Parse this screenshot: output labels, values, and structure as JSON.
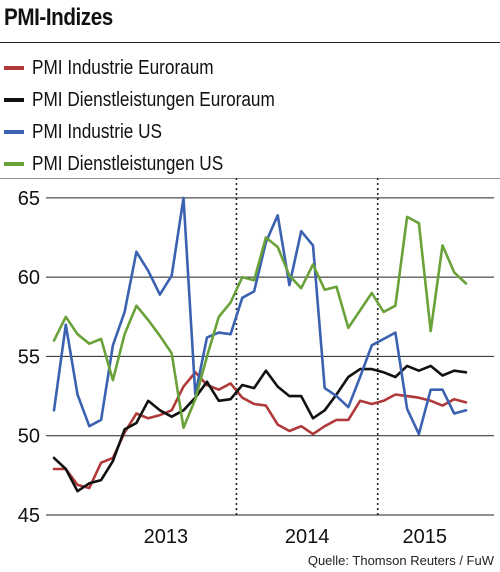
{
  "header": {
    "title": "PMI-Indizes"
  },
  "source": "Quelle: Thomson Reuters / FuW",
  "colors": {
    "red": "#b03a3a",
    "black": "#111111",
    "blue": "#3a62b0",
    "green": "#6aa23a"
  },
  "chart_data": {
    "type": "line",
    "title": "PMI-Indizes",
    "xlabel": "",
    "ylabel": "",
    "ylim": [
      45,
      66
    ],
    "yticks": [
      45,
      50,
      55,
      60,
      65
    ],
    "x": [
      "2012-09",
      "2012-10",
      "2012-11",
      "2012-12",
      "2013-01",
      "2013-02",
      "2013-03",
      "2013-04",
      "2013-05",
      "2013-06",
      "2013-07",
      "2013-08",
      "2013-09",
      "2013-10",
      "2013-11",
      "2013-12",
      "2014-01",
      "2014-02",
      "2014-03",
      "2014-04",
      "2014-05",
      "2014-06",
      "2014-07",
      "2014-08",
      "2014-09",
      "2014-10",
      "2014-11",
      "2014-12",
      "2015-01",
      "2015-02",
      "2015-03",
      "2015-04",
      "2015-05",
      "2015-06",
      "2015-07",
      "2015-08"
    ],
    "year_labels": [
      "2013",
      "2014",
      "2015"
    ],
    "grid": {
      "horizontal": "solid",
      "vertical": "dotted"
    },
    "legend_position": "top",
    "series": [
      {
        "name": "PMI Industrie Euroraum",
        "color": "#b03a3a",
        "values": [
          47.9,
          47.9,
          46.9,
          46.7,
          48.3,
          48.6,
          50.2,
          51.4,
          51.1,
          51.3,
          51.6,
          53.1,
          54.0,
          53.2,
          52.9,
          53.3,
          52.4,
          52.0,
          51.9,
          50.7,
          50.3,
          50.6,
          50.1,
          50.6,
          51.0,
          51.0,
          52.2,
          52.0,
          52.2,
          52.6,
          52.5,
          52.4,
          52.2,
          51.9,
          52.3,
          52.1
        ]
      },
      {
        "name": "PMI Dienstleistungen Euroraum",
        "color": "#111111",
        "values": [
          48.6,
          47.9,
          46.5,
          47.0,
          47.2,
          48.4,
          50.4,
          50.8,
          52.2,
          51.6,
          51.2,
          51.6,
          52.4,
          53.4,
          52.2,
          52.3,
          53.2,
          53.0,
          54.1,
          53.1,
          52.5,
          52.5,
          51.1,
          51.6,
          52.6,
          53.7,
          54.2,
          54.2,
          54.0,
          53.7,
          54.4,
          54.1,
          54.4,
          53.8,
          54.1,
          54.0
        ]
      },
      {
        "name": "PMI Industrie US",
        "color": "#3a62b0",
        "values": [
          51.6,
          57.0,
          52.6,
          50.6,
          51.0,
          55.7,
          57.8,
          61.6,
          60.4,
          58.9,
          60.1,
          65.0,
          52.6,
          56.2,
          56.5,
          56.4,
          58.7,
          59.1,
          62.2,
          63.9,
          59.5,
          62.9,
          62.0,
          53.0,
          52.5,
          51.8,
          53.7,
          55.7,
          56.1,
          56.5,
          51.7,
          50.1,
          52.9,
          52.9,
          51.4,
          51.6
        ]
      },
      {
        "name": "PMI Dienstleistungen US",
        "color": "#6aa23a",
        "values": [
          56.0,
          57.5,
          56.4,
          55.8,
          56.1,
          53.5,
          56.4,
          58.2,
          57.3,
          56.3,
          55.2,
          50.5,
          52.3,
          55.0,
          57.5,
          58.4,
          60.0,
          59.8,
          62.5,
          61.9,
          60.1,
          59.3,
          60.8,
          59.2,
          59.4,
          56.8,
          57.9,
          59.0,
          57.8,
          58.2,
          63.8,
          63.4,
          56.6,
          62.0,
          60.3,
          59.6
        ]
      }
    ]
  }
}
